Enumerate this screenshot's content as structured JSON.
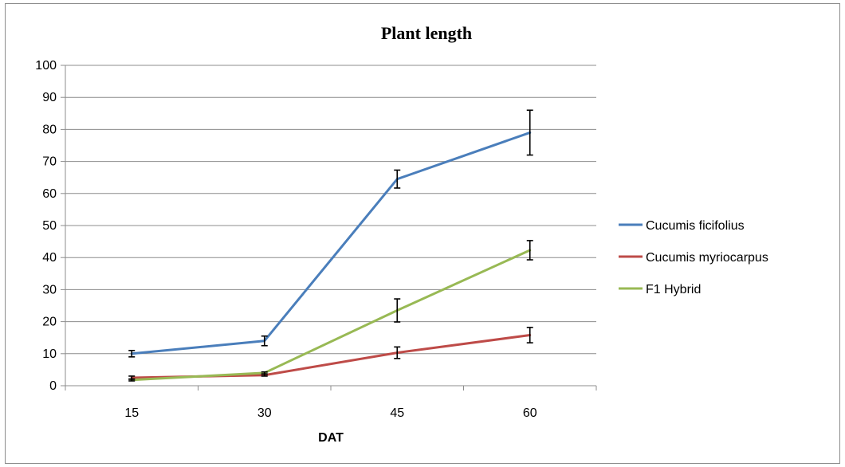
{
  "chart_data": {
    "type": "line",
    "title": "Plant length",
    "xlabel": "DAT",
    "ylabel": "",
    "categories": [
      "15",
      "30",
      "45",
      "60"
    ],
    "ylim": [
      0,
      100
    ],
    "yticks": [
      0,
      10,
      20,
      30,
      40,
      50,
      60,
      70,
      80,
      90,
      100
    ],
    "grid": true,
    "legend_position": "right",
    "series": [
      {
        "name": "Cucumis ficifolius",
        "color": "#4a7ebb",
        "values": [
          10,
          14,
          64.5,
          79
        ],
        "errors": [
          1,
          1.5,
          2.8,
          7
        ]
      },
      {
        "name": "Cucumis myriocarpus",
        "color": "#be4b48",
        "values": [
          2.5,
          3.3,
          10.3,
          15.8
        ],
        "errors": [
          0.5,
          0.3,
          1.8,
          2.4
        ]
      },
      {
        "name": "F1 Hybrid",
        "color": "#98b954",
        "values": [
          1.8,
          4,
          23.5,
          42.3
        ],
        "errors": [
          0.3,
          0.3,
          3.6,
          3
        ]
      }
    ]
  }
}
